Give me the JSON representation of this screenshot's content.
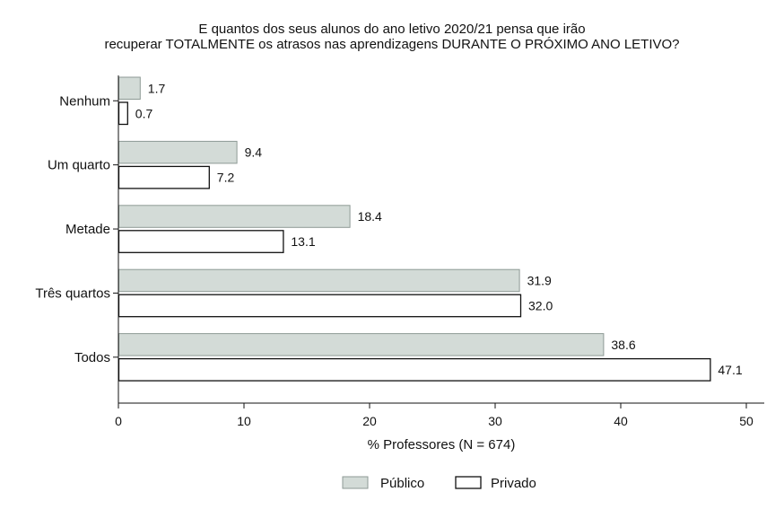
{
  "chart_data": {
    "type": "bar",
    "orientation": "horizontal",
    "title": [
      "E quantos dos seus alunos do ano letivo 2020/21 pensa que irão",
      "recuperar TOTALMENTE os atrasos nas aprendizagens DURANTE O PRÓXIMO ANO LETIVO?"
    ],
    "categories": [
      "Nenhum",
      "Um quarto",
      "Metade",
      "Três quartos",
      "Todos"
    ],
    "series": [
      {
        "name": "Público",
        "values": [
          1.7,
          9.4,
          18.4,
          31.9,
          38.6
        ],
        "color": "#d3dbd7",
        "stroke": "#8e9a95"
      },
      {
        "name": "Privado",
        "values": [
          0.7,
          7.2,
          13.1,
          32.0,
          47.1
        ],
        "color": "#ffffff",
        "stroke": "#111111"
      }
    ],
    "xlabel": "% Professores (N = 674)",
    "ylabel": "",
    "xlim": [
      0,
      50
    ],
    "xticks": [
      0,
      10,
      20,
      30,
      40,
      50
    ],
    "grid": false,
    "legend_position": "bottom"
  }
}
